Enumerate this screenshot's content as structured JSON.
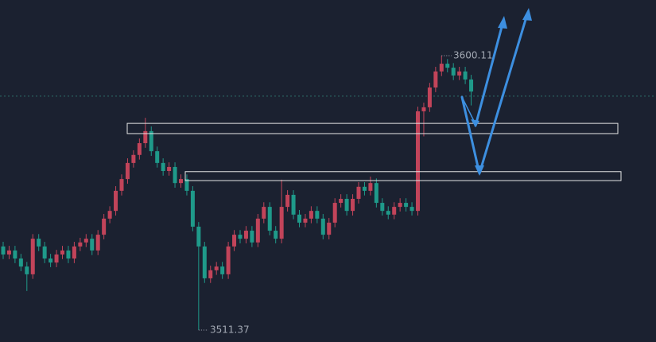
{
  "chart_data": {
    "type": "candlestick",
    "ylim": [
      3507.5,
      3618.1
    ],
    "up_color": "#c2445a",
    "down_color": "#1f9a8a",
    "open": [
      3538.4,
      3535.8,
      3537.1,
      3534.5,
      3531.9,
      3529.4,
      3540.9,
      3538.4,
      3534.5,
      3533.2,
      3535.8,
      3537.1,
      3534.5,
      3538.4,
      3539.7,
      3540.9,
      3537.1,
      3542.2,
      3547.4,
      3549.9,
      3556.4,
      3560.2,
      3565.4,
      3568.0,
      3571.8,
      3575.7,
      3569.2,
      3565.4,
      3562.8,
      3564.1,
      3558.9,
      3560.2,
      3556.4,
      3544.8,
      3538.4,
      3528.1,
      3530.7,
      3531.9,
      3529.4,
      3538.4,
      3542.2,
      3540.9,
      3543.5,
      3539.7,
      3547.4,
      3551.2,
      3543.5,
      3540.9,
      3551.2,
      3555.1,
      3548.7,
      3546.1,
      3547.4,
      3549.9,
      3547.4,
      3542.2,
      3546.1,
      3552.5,
      3553.8,
      3549.9,
      3553.8,
      3557.7,
      3556.4,
      3558.9,
      3552.5,
      3549.9,
      3548.7,
      3551.2,
      3552.5,
      3551.2,
      3549.9,
      3582.1,
      3583.4,
      3589.8,
      3595.0,
      3597.5,
      3596.2,
      3593.7,
      3595.0,
      3592.4
    ],
    "high": [
      3539.9,
      3538.6,
      3538.6,
      3536.0,
      3533.4,
      3542.4,
      3542.4,
      3539.9,
      3536.0,
      3537.3,
      3538.6,
      3538.6,
      3539.9,
      3541.2,
      3542.4,
      3542.4,
      3543.7,
      3548.9,
      3551.4,
      3557.9,
      3561.7,
      3566.9,
      3569.5,
      3573.3,
      3580.0,
      3577.2,
      3570.7,
      3566.9,
      3565.6,
      3565.6,
      3561.7,
      3561.7,
      3557.9,
      3546.3,
      3539.9,
      3532.2,
      3533.4,
      3533.4,
      3539.9,
      3543.7,
      3543.7,
      3545.0,
      3545.0,
      3548.9,
      3552.7,
      3552.7,
      3545.0,
      3560.0,
      3556.6,
      3556.6,
      3550.2,
      3548.9,
      3551.4,
      3551.4,
      3548.9,
      3547.6,
      3554.0,
      3555.3,
      3555.3,
      3555.3,
      3559.2,
      3559.2,
      3561.0,
      3560.4,
      3554.0,
      3551.4,
      3552.7,
      3554.0,
      3554.0,
      3552.7,
      3583.6,
      3584.9,
      3591.3,
      3596.5,
      3600.11,
      3599.0,
      3597.7,
      3596.5,
      3596.5,
      3593.9
    ],
    "low": [
      3534.3,
      3534.3,
      3533.0,
      3530.4,
      3524.0,
      3527.9,
      3536.9,
      3533.0,
      3531.7,
      3531.7,
      3534.3,
      3533.0,
      3533.0,
      3536.9,
      3538.2,
      3535.6,
      3535.6,
      3540.7,
      3545.9,
      3548.4,
      3554.9,
      3558.7,
      3563.9,
      3566.5,
      3570.3,
      3567.7,
      3563.9,
      3561.3,
      3561.3,
      3557.4,
      3557.4,
      3554.9,
      3543.3,
      3511.37,
      3526.6,
      3526.6,
      3529.2,
      3527.9,
      3527.9,
      3536.9,
      3539.4,
      3539.4,
      3538.2,
      3538.2,
      3545.9,
      3542.0,
      3539.4,
      3539.4,
      3549.7,
      3547.2,
      3544.6,
      3544.6,
      3545.9,
      3545.9,
      3540.7,
      3540.7,
      3544.6,
      3551.0,
      3548.4,
      3548.4,
      3552.3,
      3554.9,
      3554.9,
      3551.0,
      3548.4,
      3547.2,
      3547.2,
      3549.7,
      3549.7,
      3548.4,
      3548.4,
      3574.0,
      3581.9,
      3588.3,
      3593.5,
      3594.7,
      3592.2,
      3592.2,
      3590.9,
      3584.0
    ],
    "close": [
      3535.8,
      3537.1,
      3534.5,
      3531.9,
      3529.4,
      3540.9,
      3538.4,
      3534.5,
      3533.2,
      3535.8,
      3537.1,
      3534.5,
      3538.4,
      3539.7,
      3540.9,
      3537.1,
      3542.2,
      3547.4,
      3549.9,
      3556.4,
      3560.2,
      3565.4,
      3568.0,
      3571.8,
      3575.7,
      3569.2,
      3565.4,
      3562.8,
      3564.1,
      3558.9,
      3560.2,
      3556.4,
      3544.8,
      3538.4,
      3528.1,
      3530.7,
      3531.9,
      3529.4,
      3538.4,
      3542.2,
      3540.9,
      3543.5,
      3539.7,
      3547.4,
      3551.2,
      3543.5,
      3540.9,
      3551.2,
      3555.1,
      3548.7,
      3546.1,
      3547.4,
      3549.9,
      3547.4,
      3542.2,
      3546.1,
      3552.5,
      3553.8,
      3549.9,
      3553.8,
      3557.7,
      3556.4,
      3558.9,
      3552.5,
      3549.9,
      3548.7,
      3551.2,
      3552.5,
      3551.2,
      3549.9,
      3582.1,
      3583.4,
      3589.8,
      3595.0,
      3597.5,
      3596.2,
      3593.7,
      3595.0,
      3592.4,
      3588.5
    ],
    "price_line": 3587.0,
    "zones": [
      {
        "high": 3578.2,
        "low": 3574.9
      },
      {
        "high": 3562.6,
        "low": 3559.7
      }
    ]
  }
}
